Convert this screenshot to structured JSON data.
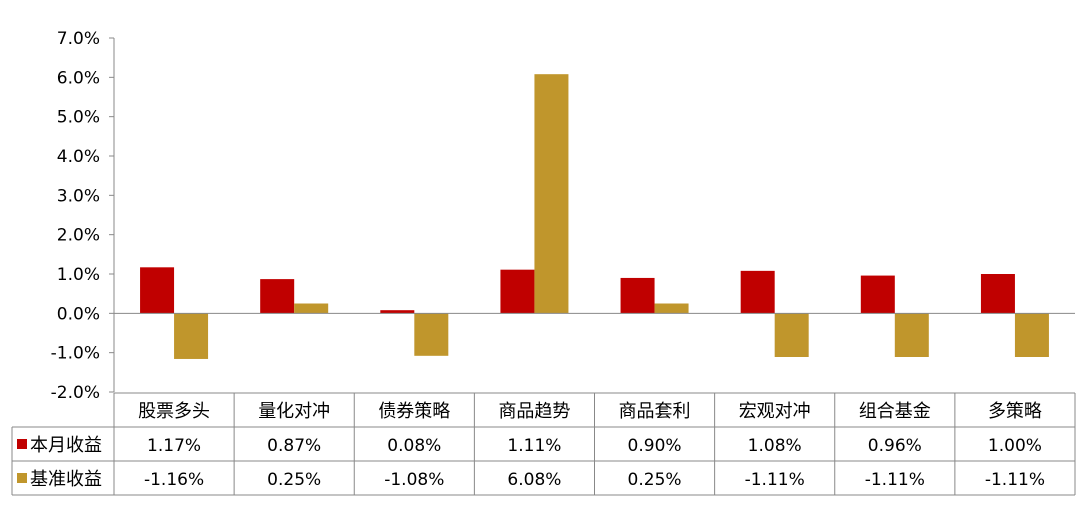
{
  "chart_data": {
    "type": "bar",
    "categories": [
      "股票多头",
      "量化对冲",
      "债券策略",
      "商品趋势",
      "商品套利",
      "宏观对冲",
      "组合基金",
      "多策略"
    ],
    "series": [
      {
        "name": "本月收益",
        "color": "#C00000",
        "values": [
          1.17,
          0.87,
          0.08,
          1.11,
          0.9,
          1.08,
          0.96,
          1.0
        ],
        "labels": [
          "1.17%",
          "0.87%",
          "0.08%",
          "1.11%",
          "0.90%",
          "1.08%",
          "0.96%",
          "1.00%"
        ]
      },
      {
        "name": "基准收益",
        "color": "#C0962C",
        "values": [
          -1.16,
          0.25,
          -1.08,
          6.08,
          0.25,
          -1.11,
          -1.11,
          -1.11
        ],
        "labels": [
          "-1.16%",
          "0.25%",
          "-1.08%",
          "6.08%",
          "0.25%",
          "-1.11%",
          "-1.11%",
          "-1.11%"
        ]
      }
    ],
    "ylim": [
      -2.0,
      7.0
    ],
    "yticks": [
      7.0,
      6.0,
      5.0,
      4.0,
      3.0,
      2.0,
      1.0,
      0.0,
      -1.0,
      -2.0
    ],
    "ytick_labels": [
      "7.0%",
      "6.0%",
      "5.0%",
      "4.0%",
      "3.0%",
      "2.0%",
      "1.0%",
      "0.0%",
      "-1.0%",
      "-2.0%"
    ],
    "grid": false,
    "legend": "data-table-left"
  }
}
